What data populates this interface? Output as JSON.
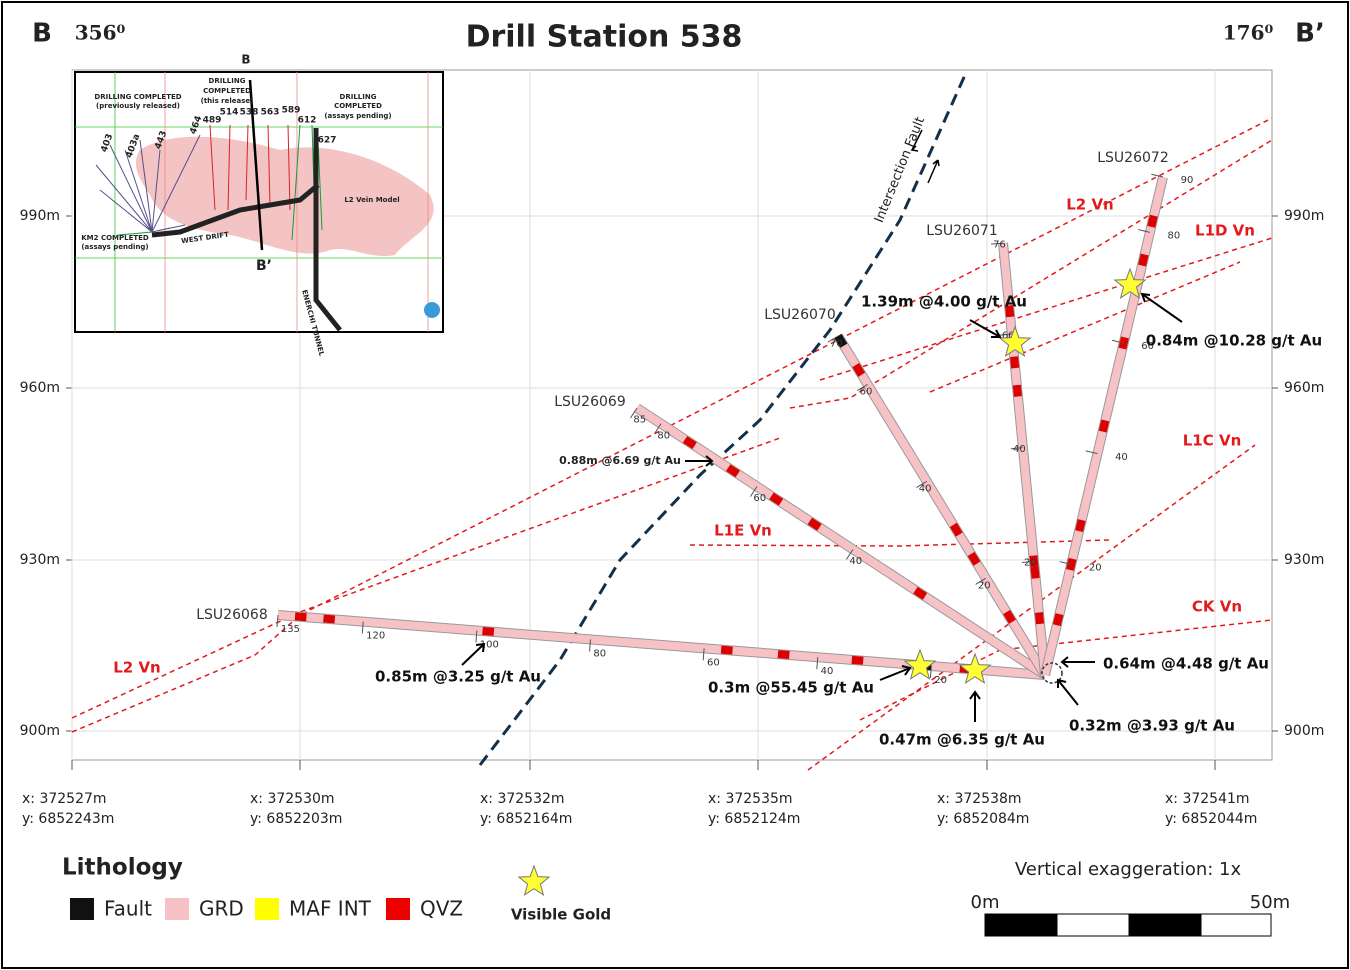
{
  "header": {
    "section_start": "B",
    "azimuth_start": "356⁰",
    "title": "Drill Station 538",
    "azimuth_end": "176⁰",
    "section_end": "B’"
  },
  "elevations": [
    "990m",
    "960m",
    "930m",
    "900m"
  ],
  "coordinates": [
    {
      "x": "x: 372527m",
      "y": "y: 6852243m"
    },
    {
      "x": "x: 372530m",
      "y": "y: 6852203m"
    },
    {
      "x": "x: 372532m",
      "y": "y: 6852164m"
    },
    {
      "x": "x: 372535m",
      "y": "y: 6852124m"
    },
    {
      "x": "x: 372538m",
      "y": "y: 6852084m"
    },
    {
      "x": "x: 372541m",
      "y": "y: 6852044m"
    }
  ],
  "fault": "Intersection Fault",
  "veins": [
    "L2 Vn",
    "L1D Vn",
    "L1C Vn",
    "L1E Vn",
    "CK Vn"
  ],
  "holes": [
    {
      "name": "LSU26068",
      "depths": [
        135,
        120,
        100,
        80,
        60,
        40,
        20
      ]
    },
    {
      "name": "LSU26069",
      "depths": [
        85,
        80,
        60,
        40
      ]
    },
    {
      "name": "LSU26070",
      "depths": [
        70,
        60,
        40,
        20
      ]
    },
    {
      "name": "LSU26071",
      "depths": [
        76,
        60,
        40,
        20
      ]
    },
    {
      "name": "LSU26072",
      "depths": [
        90,
        80,
        60,
        40,
        20
      ]
    }
  ],
  "intercepts": [
    "0.85m @3.25 g/t Au",
    "0.3m @55.45 g/t Au",
    "0.47m @6.35 g/t Au",
    "0.32m @3.93 g/t Au",
    "0.64m @4.48 g/t Au",
    "0.88m @6.69 g/t Au",
    "1.39m @4.00 g/t Au",
    "0.84m @10.28 g/t Au"
  ],
  "inset": {
    "section_start": "B",
    "section_end": "B’",
    "previous": [
      "DRILLING COMPLETED",
      "(previously released)"
    ],
    "release": [
      "DRILLING",
      "COMPLETED",
      "(this release)"
    ],
    "pending": [
      "DRILLING",
      "COMPLETED",
      "(assays pending)"
    ],
    "vein_model": "L2 Vein Model",
    "km2": [
      "KM2 COMPLETED",
      "(assays pending)"
    ],
    "west_drift": "WEST DRIFT",
    "tunnel": "ENERCHI TUNNEL",
    "hole_labels": [
      "403",
      "403a",
      "443",
      "464",
      "489",
      "514",
      "538",
      "563",
      "589",
      "612",
      "627"
    ]
  },
  "legend": {
    "title": "Lithology",
    "items": [
      "Fault",
      "GRD",
      "MAF INT",
      "QVZ"
    ],
    "visible_gold": "Visible Gold"
  },
  "scale": {
    "exaggeration": "Vertical exaggeration: 1x",
    "start": "0m",
    "end": "50m"
  }
}
